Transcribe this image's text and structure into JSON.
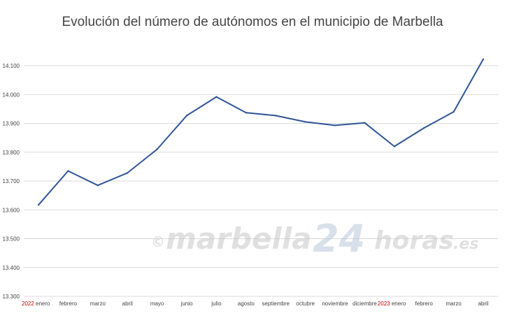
{
  "chart_data": {
    "type": "line",
    "title": "Evolución del número de autónomos en el municipio de Marbella",
    "xlabel": "",
    "ylabel": "",
    "ylim": [
      13300,
      14100
    ],
    "yticks": [
      13300,
      13400,
      13500,
      13600,
      13700,
      13800,
      13900,
      14000,
      14100
    ],
    "ytick_labels": [
      "13.300",
      "13.400",
      "13.500",
      "13.600",
      "13.700",
      "13.800",
      "13.900",
      "14.000",
      "14.100"
    ],
    "grid": "horizontal",
    "legend": "none",
    "line_color": "#2f5597",
    "categories": [
      "enero",
      "febrero",
      "marzo",
      "abril",
      "mayo",
      "junio",
      "julio",
      "agosto",
      "septiembre",
      "octubre",
      "noviembre",
      "diciembre",
      "enero",
      "febrero",
      "marzo",
      "abril"
    ],
    "year_labels": [
      {
        "index": 0,
        "label": "2022"
      },
      {
        "index": 12,
        "label": "2023"
      }
    ],
    "series": [
      {
        "values": [
          13617,
          13735,
          13685,
          13728,
          13810,
          13927,
          13992,
          13937,
          13927,
          13905,
          13893,
          13902,
          13820,
          13884,
          13940,
          14123
        ]
      }
    ]
  },
  "watermark": {
    "copyright": "©",
    "part1": "marbella",
    "part2": "24",
    "part3": "horas",
    "part4": ".es"
  }
}
